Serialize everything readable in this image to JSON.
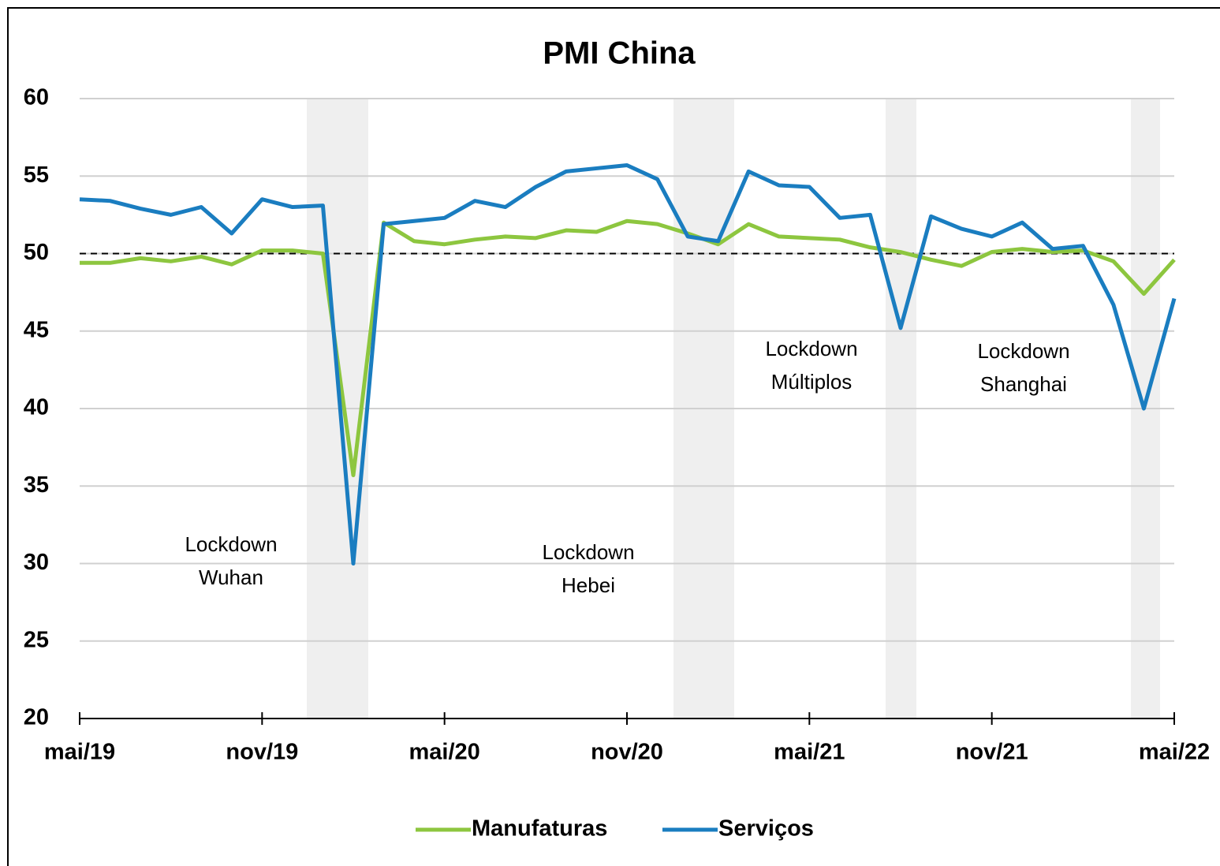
{
  "chart_data": {
    "type": "line",
    "title": "PMI China",
    "categories": [
      "mai/19",
      null,
      null,
      null,
      null,
      null,
      "nov/19",
      null,
      null,
      null,
      null,
      null,
      "mai/20",
      null,
      null,
      null,
      null,
      null,
      "nov/20",
      null,
      null,
      null,
      null,
      null,
      "mai/21",
      null,
      null,
      null,
      null,
      null,
      "nov/21",
      null,
      null,
      null,
      null,
      null,
      "mai/22"
    ],
    "series": [
      {
        "name": "Manufaturas",
        "color": "#8dc63f",
        "values": [
          49.4,
          49.4,
          49.7,
          49.5,
          49.8,
          49.3,
          50.2,
          50.2,
          50.0,
          35.7,
          52.0,
          50.8,
          50.6,
          50.9,
          51.1,
          51.0,
          51.5,
          51.4,
          52.1,
          51.9,
          51.3,
          50.6,
          51.9,
          51.1,
          51.0,
          50.9,
          50.4,
          50.1,
          49.6,
          49.2,
          50.1,
          50.3,
          50.1,
          50.2,
          49.5,
          47.4,
          49.6
        ]
      },
      {
        "name": "Serviços",
        "color": "#1a7dc0",
        "values": [
          53.5,
          53.4,
          52.9,
          52.5,
          53.0,
          51.3,
          53.5,
          53.0,
          53.1,
          30.0,
          51.9,
          52.1,
          52.3,
          53.4,
          53.0,
          54.3,
          55.3,
          55.5,
          55.7,
          54.8,
          51.1,
          50.8,
          55.3,
          54.4,
          54.3,
          52.3,
          52.5,
          45.2,
          52.4,
          51.6,
          51.1,
          52.0,
          50.3,
          50.5,
          46.7,
          40.0,
          47.1
        ]
      }
    ],
    "ylim": [
      20,
      60
    ],
    "yticks": [
      20,
      25,
      30,
      35,
      40,
      45,
      50,
      55,
      60
    ],
    "grid": true,
    "reference_line": 50,
    "annotations": [
      [
        "Lockdown",
        "Wuhan"
      ],
      [
        "Lockdown",
        "Hebei"
      ],
      [
        "Lockdown",
        "Múltiplos"
      ],
      [
        "Lockdown",
        "Shanghai"
      ]
    ],
    "legend": "bottom"
  }
}
